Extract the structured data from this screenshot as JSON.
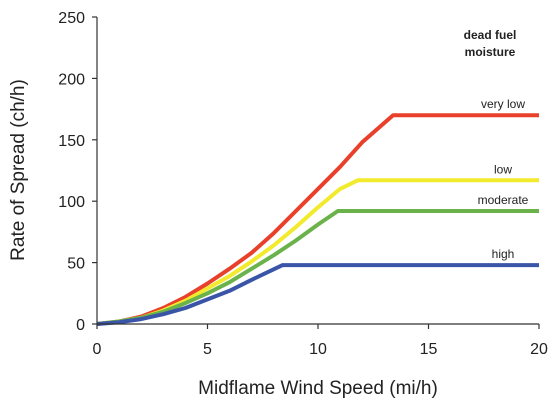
{
  "chart_data": {
    "type": "line",
    "title": "",
    "xlabel": "Midflame Wind Speed (mi/h)",
    "ylabel": "Rate of Spread (ch/h)",
    "xlim": [
      0,
      20
    ],
    "ylim": [
      0,
      250
    ],
    "xticks": [
      0,
      5,
      10,
      15,
      20
    ],
    "yticks": [
      0,
      50,
      100,
      150,
      200,
      250
    ],
    "grid": false,
    "legend_title": "dead fuel moisture",
    "series": [
      {
        "name": "very low",
        "color": "#e8402a",
        "x": [
          0,
          1,
          2,
          3,
          4,
          5,
          6,
          7,
          8,
          9,
          10,
          11,
          12,
          13.4,
          20
        ],
        "y": [
          0,
          2,
          6,
          13,
          22,
          33,
          45,
          58,
          74,
          92,
          110,
          128,
          148,
          170,
          170
        ]
      },
      {
        "name": "low",
        "color": "#f2ea2c",
        "x": [
          0,
          1,
          2,
          3,
          4,
          5,
          6,
          7,
          8,
          9,
          10,
          11,
          11.8,
          20
        ],
        "y": [
          0,
          2,
          5,
          11,
          19,
          29,
          39,
          51,
          64,
          79,
          95,
          110,
          117,
          117
        ]
      },
      {
        "name": "moderate",
        "color": "#6ab24a",
        "x": [
          0,
          1,
          2,
          3,
          4,
          5,
          6,
          7,
          8,
          9,
          10,
          10.9,
          20
        ],
        "y": [
          0,
          2,
          5,
          10,
          17,
          25,
          34,
          45,
          56,
          68,
          81,
          92,
          92
        ]
      },
      {
        "name": "high",
        "color": "#3a55a8",
        "x": [
          0,
          1,
          2,
          3,
          4,
          5,
          6,
          7,
          8.4,
          20
        ],
        "y": [
          0,
          1.5,
          4,
          8,
          13,
          20,
          27,
          36,
          48,
          48
        ]
      }
    ]
  }
}
